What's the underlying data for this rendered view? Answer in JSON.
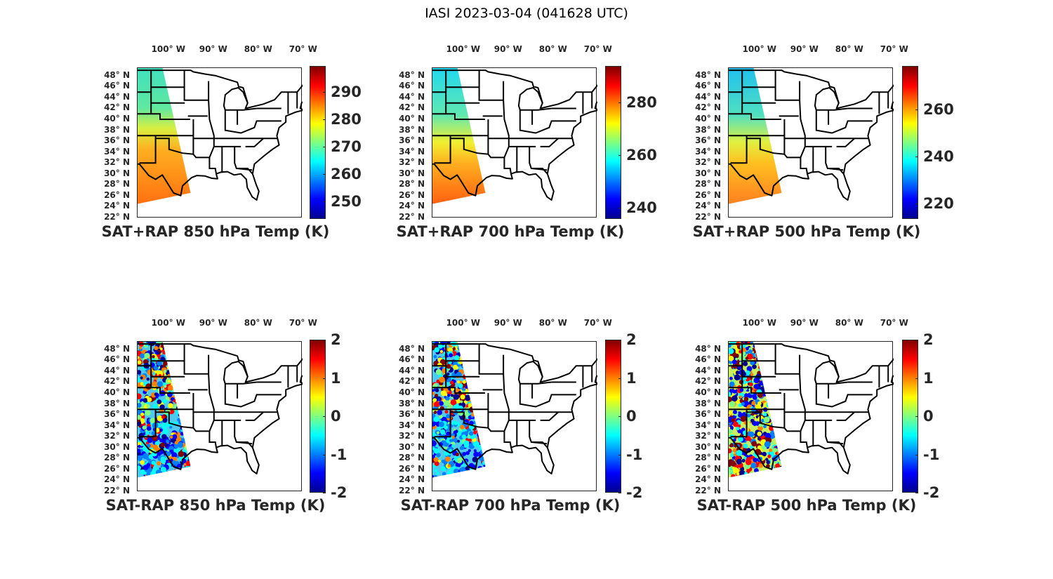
{
  "figure_title": "IASI 2023-03-04 (041628 UTC)",
  "lon_labels": [
    "100° W",
    "90° W",
    "80° W",
    "70° W"
  ],
  "lon_values": [
    -100,
    -90,
    -80,
    -70
  ],
  "lat_labels": [
    "48° N",
    "46° N",
    "44° N",
    "42° N",
    "40° N",
    "38° N",
    "36° N",
    "34° N",
    "32° N",
    "30° N",
    "28° N",
    "26° N",
    "24° N",
    "22° N"
  ],
  "lat_values": [
    48,
    46,
    44,
    42,
    40,
    38,
    36,
    34,
    32,
    30,
    28,
    26,
    24,
    22
  ],
  "colormap": "jet",
  "panels": [
    {
      "title": "SAT+RAP 850 hPa Temp (K)",
      "cbar_ticks": [
        "250",
        "260",
        "270",
        "280",
        "290"
      ],
      "cbar_tick_values": [
        250,
        260,
        270,
        280,
        290
      ],
      "cbar_range": [
        243.6,
        299.5
      ],
      "kind": "temp"
    },
    {
      "title": "SAT+RAP 700 hPa Temp (K)",
      "cbar_ticks": [
        "240",
        "260",
        "280"
      ],
      "cbar_tick_values": [
        240,
        260,
        280
      ],
      "cbar_range": [
        235.7,
        293.9
      ],
      "kind": "temp"
    },
    {
      "title": "SAT+RAP 500 hPa Temp (K)",
      "cbar_ticks": [
        "220",
        "240",
        "260"
      ],
      "cbar_tick_values": [
        220,
        240,
        260
      ],
      "cbar_range": [
        213.4,
        278.5
      ],
      "kind": "temp"
    },
    {
      "title": "SAT-RAP 850 hPa Temp (K)",
      "cbar_ticks": [
        "-2",
        "-1",
        "0",
        "1",
        "2"
      ],
      "cbar_tick_values": [
        -2,
        -1,
        0,
        1,
        2
      ],
      "cbar_range": [
        -2,
        2
      ],
      "kind": "diff"
    },
    {
      "title": "SAT-RAP 700 hPa Temp (K)",
      "cbar_ticks": [
        "-2",
        "-1",
        "0",
        "1",
        "2"
      ],
      "cbar_tick_values": [
        -2,
        -1,
        0,
        1,
        2
      ],
      "cbar_range": [
        -2,
        2
      ],
      "kind": "diff"
    },
    {
      "title": "SAT-RAP 500 hPa Temp (K)",
      "cbar_ticks": [
        "-2",
        "-1",
        "0",
        "1",
        "2"
      ],
      "cbar_tick_values": [
        -2,
        -1,
        0,
        1,
        2
      ],
      "cbar_range": [
        -2,
        2
      ],
      "kind": "diff"
    }
  ]
}
